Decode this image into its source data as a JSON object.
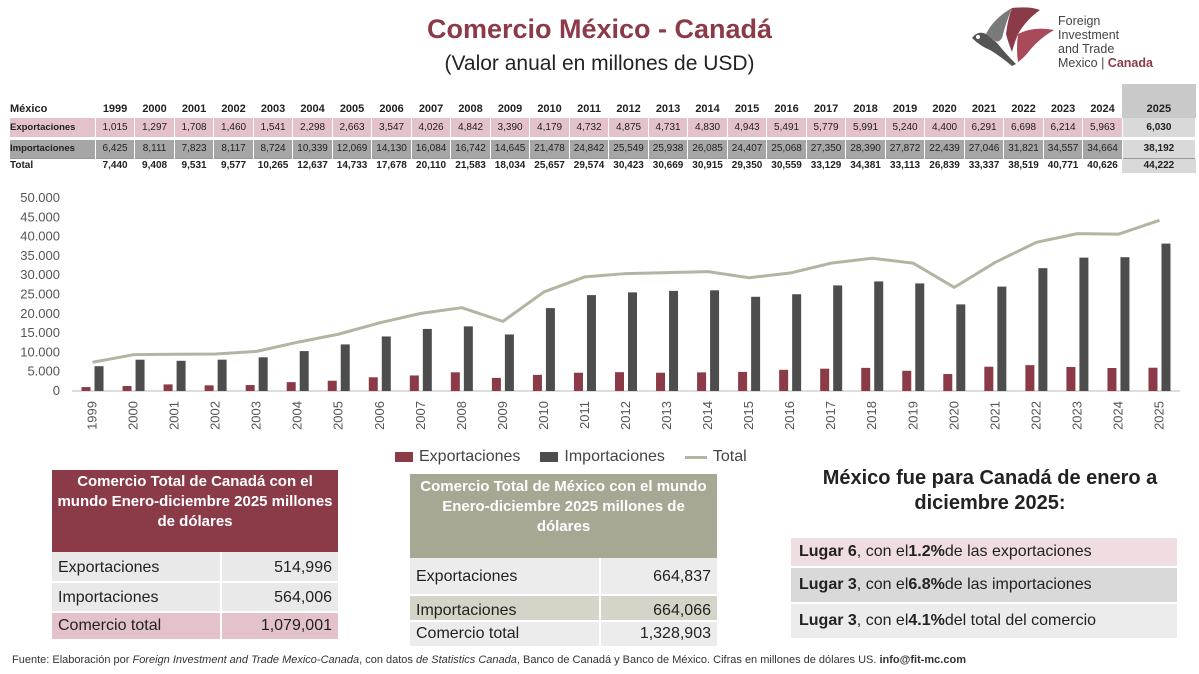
{
  "title": "Comercio México - Canadá",
  "subtitle": "(Valor anual en millones de USD)",
  "logo": {
    "line1": "Foreign",
    "line2": "Investment",
    "line3": "and Trade",
    "line4": "Mexico",
    "sep": " | ",
    "line4b": "Canada"
  },
  "table": {
    "header_label": "México",
    "row_labels": [
      "Exportaciones",
      "Importaciones",
      "Total"
    ]
  },
  "chart_data": {
    "type": "bar",
    "categories": [
      "1999",
      "2000",
      "2001",
      "2002",
      "2003",
      "2004",
      "2005",
      "2006",
      "2007",
      "2008",
      "2009",
      "2010",
      "2011",
      "2012",
      "2013",
      "2014",
      "2015",
      "2016",
      "2017",
      "2018",
      "2019",
      "2020",
      "2021",
      "2022",
      "2023",
      "2024",
      "2025"
    ],
    "series": [
      {
        "name": "Exportaciones",
        "type": "bar",
        "color": "#8b3a48",
        "values": [
          1015,
          1297,
          1708,
          1460,
          1541,
          2298,
          2663,
          3547,
          4026,
          4842,
          3390,
          4179,
          4732,
          4875,
          4731,
          4830,
          4943,
          5491,
          5779,
          5991,
          5240,
          4400,
          6291,
          6698,
          6214,
          5963,
          6030
        ]
      },
      {
        "name": "Importaciones",
        "type": "bar",
        "color": "#4d4d4d",
        "values": [
          6425,
          8111,
          7823,
          8117,
          8724,
          10339,
          12069,
          14130,
          16084,
          16742,
          14645,
          21478,
          24842,
          25549,
          25938,
          26085,
          24407,
          25068,
          27350,
          28390,
          27872,
          22439,
          27046,
          31821,
          34557,
          34664,
          38192
        ]
      },
      {
        "name": "Total",
        "type": "line",
        "color": "#b3b5a2",
        "values": [
          7440,
          9408,
          9531,
          9577,
          10265,
          12637,
          14733,
          17678,
          20110,
          21583,
          18034,
          25657,
          29574,
          30423,
          30669,
          30915,
          29350,
          30559,
          33129,
          34381,
          33113,
          26839,
          33337,
          38519,
          40771,
          40626,
          44222
        ]
      }
    ],
    "display_values": {
      "Exportaciones": [
        "1,015",
        "1,297",
        "1,708",
        "1,460",
        "1,541",
        "2,298",
        "2,663",
        "3,547",
        "4,026",
        "4,842",
        "3,390",
        "4,179",
        "4,732",
        "4,875",
        "4,731",
        "4,830",
        "4,943",
        "5,491",
        "5,779",
        "5,991",
        "5,240",
        "4,400",
        "6,291",
        "6,698",
        "6,214",
        "5,963",
        "6,030"
      ],
      "Importaciones": [
        "6,425",
        "8,111",
        "7,823",
        "8,117",
        "8,724",
        "10,339",
        "12,069",
        "14,130",
        "16,084",
        "16,742",
        "14,645",
        "21,478",
        "24,842",
        "25,549",
        "25,938",
        "26,085",
        "24,407",
        "25,068",
        "27,350",
        "28,390",
        "27,872",
        "22,439",
        "27,046",
        "31,821",
        "34,557",
        "34,664",
        "38,192"
      ],
      "Total": [
        "7,440",
        "9,408",
        "9,531",
        "9,577",
        "10,265",
        "12,637",
        "14,733",
        "17,678",
        "20,110",
        "21,583",
        "18,034",
        "25,657",
        "29,574",
        "30,423",
        "30,669",
        "30,915",
        "29,350",
        "30,559",
        "33,129",
        "34,381",
        "33,113",
        "26,839",
        "33,337",
        "38,519",
        "40,771",
        "40,626",
        "44,222"
      ]
    },
    "ylim": [
      0,
      50000
    ],
    "yticks": [
      "0",
      "5.000",
      "10.000",
      "15.000",
      "20.000",
      "25.000",
      "30.000",
      "35.000",
      "40.000",
      "45.000",
      "50.000"
    ],
    "ytick_values": [
      0,
      5000,
      10000,
      15000,
      20000,
      25000,
      30000,
      35000,
      40000,
      45000,
      50000
    ],
    "grid": false,
    "legend_position": "bottom"
  },
  "legend": [
    "Exportaciones",
    "Importaciones",
    "Total"
  ],
  "canada_box": {
    "heading": "Comercio Total de Canadá con el mundo Enero-diciembre 2025 millones de dólares",
    "rows": [
      {
        "k": "Exportaciones",
        "v": "514,996"
      },
      {
        "k": "Importaciones",
        "v": "564,006"
      },
      {
        "k": "Comercio total",
        "v": "1,079,001"
      }
    ]
  },
  "mexico_box": {
    "heading": "Comercio Total de México con el mundo Enero-diciembre 2025 millones de dólares",
    "rows": [
      {
        "k": "Exportaciones",
        "v": "664,837"
      },
      {
        "k": "Importaciones",
        "v": "664,066"
      },
      {
        "k": "Comercio total",
        "v": "1,328,903"
      }
    ]
  },
  "ranking": {
    "title": "México fue para Canadá de enero a diciembre 2025:",
    "items": [
      {
        "place": "Lugar 6",
        "mid": ", con el ",
        "pct": "1.2%",
        "end": " de las exportaciones"
      },
      {
        "place": "Lugar 3",
        "mid": ", con el ",
        "pct": "6.8%",
        "end": " de las importaciones"
      },
      {
        "place": "Lugar 3",
        "mid": ", con el ",
        "pct": "4.1%",
        "end": " del total del comercio"
      }
    ]
  },
  "footer": {
    "p1": "Fuente: Elaboración por ",
    "p2": "Foreign Investment and Trade Mexico-Canada",
    "p3": ", con datos ",
    "p4": "de Statistics Canada",
    "p5": ", Banco de Canadá y Banco de México. Cifras en millones de dólares US.  ",
    "p6": "info@fit-mc.com"
  },
  "colors": {
    "accent": "#8b3a48",
    "olive": "#b3b5a2",
    "olive_box": "#a6a893",
    "dark": "#4d4d4d"
  }
}
